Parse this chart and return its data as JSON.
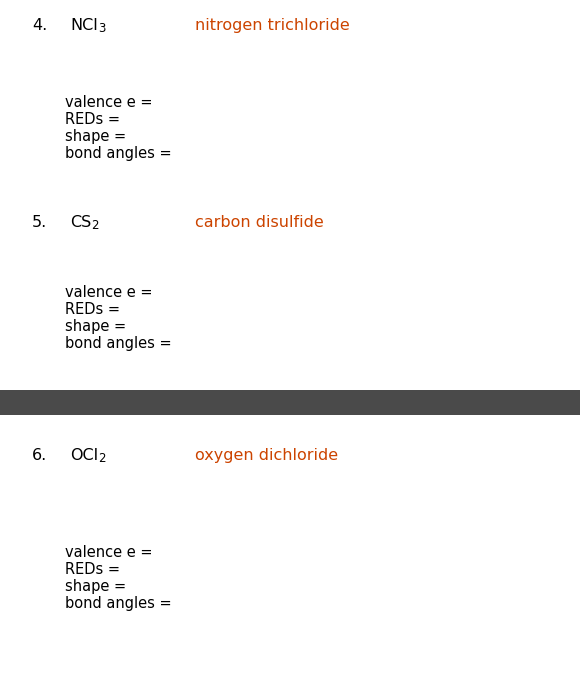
{
  "background_color": "#ffffff",
  "divider_color": "#4a4a4a",
  "sections": [
    {
      "number": "4.",
      "formula_main": "NCl",
      "formula_sub": "3",
      "name": "nitrogen trichloride",
      "fields": [
        "valence e =",
        "REDs =",
        "shape =",
        "bond angles ="
      ]
    },
    {
      "number": "5.",
      "formula_main": "CS",
      "formula_sub": "2",
      "name": "carbon disulfide",
      "fields": [
        "valence e =",
        "REDs =",
        "shape =",
        "bond angles ="
      ]
    },
    {
      "number": "6.",
      "formula_main": "OCl",
      "formula_sub": "2",
      "name": "oxygen dichloride",
      "fields": [
        "valence e =",
        "REDs =",
        "shape =",
        "bond angles ="
      ]
    }
  ],
  "name_color": "#cc4400",
  "formula_color": "#000000",
  "number_color": "#000000",
  "fields_color": "#000000",
  "font_size_header": 11.5,
  "font_size_formula": 11.5,
  "font_size_fields": 10.5
}
